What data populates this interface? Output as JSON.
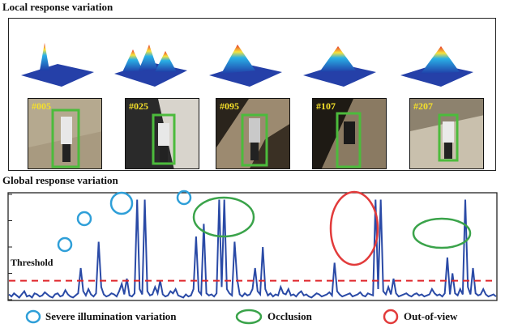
{
  "headings": {
    "local": "Local response variation",
    "global": "Global response variation"
  },
  "frames": [
    {
      "label": "#005",
      "bg": "#b5a98f",
      "shadow": "#6e6353"
    },
    {
      "label": "#025",
      "bg": "#2a2a2a",
      "shadow": "#d8d4cc"
    },
    {
      "label": "#095",
      "bg": "#9c8a70",
      "shadow": "#2a241c"
    },
    {
      "label": "#107",
      "bg": "#8a7a62",
      "shadow": "#1e1a14"
    },
    {
      "label": "#207",
      "bg": "#c9c0ad",
      "shadow": "#8d826e"
    }
  ],
  "threshold_label": "Threshold",
  "legend": {
    "illumination": "Severe illumination variation",
    "occlusion": "Occlusion",
    "out_of_view": "Out-of-view"
  },
  "colors": {
    "line": "#2a4aa6",
    "threshold": "#e0262b",
    "illumination": "#2f9fd8",
    "occlusion": "#3aa34a",
    "out_of_view": "#e23b3b",
    "box": "#4cbb3c",
    "label": "#f5e02a"
  },
  "chart_data": {
    "type": "line",
    "threshold": 0.18,
    "ylim": [
      0,
      1
    ],
    "values": [
      0.05,
      0.03,
      0.06,
      0.04,
      0.02,
      0.05,
      0.08,
      0.03,
      0.04,
      0.02,
      0.06,
      0.05,
      0.03,
      0.04,
      0.07,
      0.05,
      0.03,
      0.02,
      0.05,
      0.06,
      0.03,
      0.04,
      0.09,
      0.05,
      0.03,
      0.02,
      0.04,
      0.06,
      0.3,
      0.08,
      0.04,
      0.1,
      0.05,
      0.03,
      0.06,
      0.55,
      0.12,
      0.05,
      0.03,
      0.04,
      0.06,
      0.05,
      0.03,
      0.08,
      0.15,
      0.05,
      0.2,
      0.04,
      0.03,
      0.06,
      0.95,
      0.1,
      0.05,
      0.95,
      0.08,
      0.04,
      0.05,
      0.12,
      0.06,
      0.18,
      0.05,
      0.03,
      0.04,
      0.08,
      0.06,
      0.1,
      0.04,
      0.03,
      0.02,
      0.05,
      0.03,
      0.04,
      0.1,
      0.6,
      0.08,
      0.05,
      0.72,
      0.06,
      0.04,
      0.05,
      0.03,
      0.06,
      0.95,
      0.12,
      0.95,
      0.1,
      0.06,
      0.04,
      0.55,
      0.2,
      0.05,
      0.03,
      0.06,
      0.04,
      0.05,
      0.1,
      0.3,
      0.08,
      0.05,
      0.5,
      0.1,
      0.04,
      0.06,
      0.03,
      0.05,
      0.04,
      0.12,
      0.06,
      0.05,
      0.1,
      0.04,
      0.05,
      0.03,
      0.06,
      0.08,
      0.04,
      0.05,
      0.03,
      0.02,
      0.04,
      0.06,
      0.05,
      0.03,
      0.04,
      0.05,
      0.07,
      0.04,
      0.35,
      0.08,
      0.05,
      0.03,
      0.04,
      0.05,
      0.06,
      0.03,
      0.04,
      0.05,
      0.07,
      0.04,
      0.03,
      0.06,
      0.05,
      0.04,
      0.95,
      0.1,
      0.95,
      0.08,
      0.05,
      0.12,
      0.05,
      0.2,
      0.06,
      0.03,
      0.04,
      0.05,
      0.06,
      0.04,
      0.03,
      0.05,
      0.06,
      0.04,
      0.05,
      0.03,
      0.04,
      0.05,
      0.1,
      0.06,
      0.04,
      0.05,
      0.03,
      0.06,
      0.4,
      0.05,
      0.25,
      0.06,
      0.04,
      0.1,
      0.05,
      0.95,
      0.12,
      0.05,
      0.3,
      0.06,
      0.04,
      0.05,
      0.1,
      0.05,
      0.03,
      0.04,
      0.05,
      0.03
    ]
  }
}
